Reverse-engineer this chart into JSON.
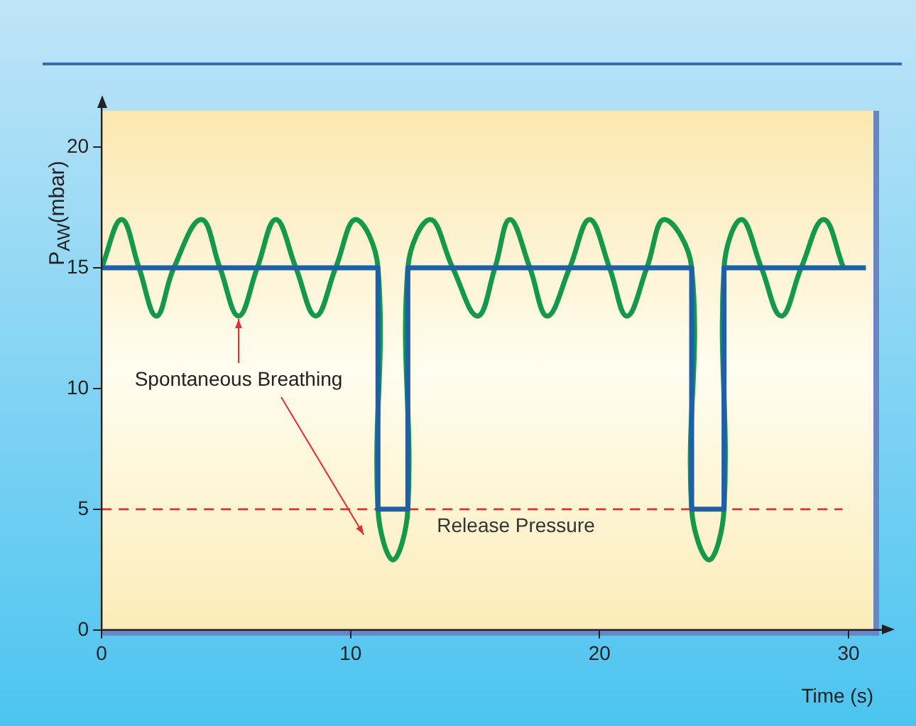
{
  "chart_data": {
    "type": "line",
    "xlabel": "Time (s)",
    "ylabel": "P$_{AW}$(mbar)",
    "x": [
      0,
      11.1,
      11.1,
      12.3,
      12.3,
      23.7,
      23.7,
      25.0,
      25.0,
      30.7
    ],
    "series": [
      {
        "color": "#1f5fa8",
        "values": [
          15,
          15,
          5,
          5,
          15,
          15,
          5,
          5,
          15,
          15
        ]
      },
      {
        "color": "#14994a",
        "x": [
          0,
          0.8,
          1.5,
          2.2,
          2.9,
          4.0,
          4.75,
          5.5,
          6.25,
          7.0,
          7.8,
          8.6,
          9.4,
          10.2,
          11.1,
          11.1,
          11.7,
          12.3,
          12.3,
          13.2,
          14.1,
          15.1,
          15.8,
          16.4,
          17.2,
          17.9,
          18.8,
          19.6,
          20.4,
          21.1,
          21.9,
          22.6,
          23.7,
          23.7,
          24.4,
          25.0,
          25.0,
          25.7,
          26.5,
          27.3,
          28.1,
          29.0,
          29.8
        ],
        "values": [
          15,
          17,
          15,
          13,
          15,
          17,
          15,
          13,
          15,
          17,
          15,
          13,
          15,
          17,
          15,
          5,
          2.9,
          5,
          15,
          17,
          15,
          13,
          15,
          17,
          15,
          13,
          15,
          17,
          15,
          13,
          15,
          17,
          15,
          5,
          2.9,
          5,
          15,
          17,
          15,
          13,
          15,
          17,
          15
        ]
      }
    ],
    "xlim": [
      0,
      31
    ],
    "xticks": [
      0,
      10,
      20,
      30
    ],
    "ylim": [
      0,
      21.5
    ],
    "yticks": [
      0,
      5,
      10,
      15,
      20
    ],
    "grid": false,
    "legend": false,
    "marker": "none",
    "line_style": "solid",
    "ref_lines": [
      {
        "axis": "y",
        "value": 5,
        "label": "Release Pressure",
        "color": "#e03030",
        "line_style": "dashed"
      }
    ],
    "annotations": [
      {
        "text": "Spontaneous Breathing",
        "x": 5.5,
        "y": 13
      }
    ]
  }
}
